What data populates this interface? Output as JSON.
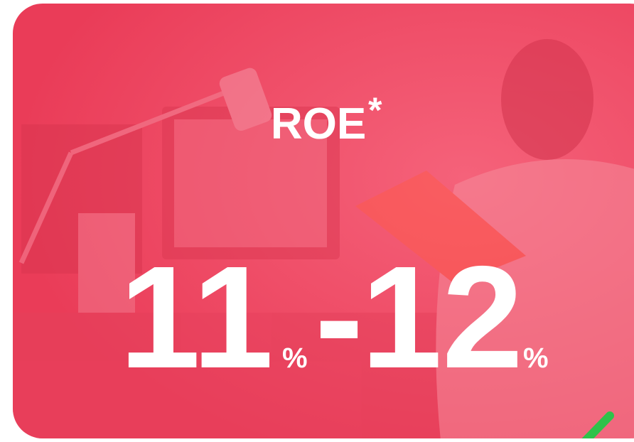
{
  "card": {
    "title": "ROE",
    "title_mark": "*",
    "range": {
      "low": "11",
      "low_unit": "%",
      "separator": "-",
      "high": "12",
      "high_unit": "%"
    }
  }
}
